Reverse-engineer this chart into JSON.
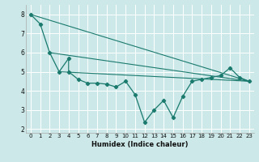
{
  "title": "",
  "xlabel": "Humidex (Indice chaleur)",
  "ylabel": "",
  "background_color": "#cce8e8",
  "grid_color": "#ffffff",
  "line_color": "#1a7a6e",
  "xlim": [
    -0.5,
    23.5
  ],
  "ylim": [
    1.8,
    8.5
  ],
  "yticks": [
    2,
    3,
    4,
    5,
    6,
    7,
    8
  ],
  "xticks": [
    0,
    1,
    2,
    3,
    4,
    5,
    6,
    7,
    8,
    9,
    10,
    11,
    12,
    13,
    14,
    15,
    16,
    17,
    18,
    19,
    20,
    21,
    22,
    23
  ],
  "series_main": {
    "x": [
      0,
      1,
      2,
      3,
      4,
      4,
      5,
      6,
      7,
      8,
      9,
      10,
      11,
      12,
      13,
      14,
      15,
      16,
      17,
      18,
      19,
      20,
      21,
      22,
      23
    ],
    "y": [
      8.0,
      7.5,
      6.0,
      5.0,
      5.7,
      5.0,
      4.6,
      4.4,
      4.4,
      4.35,
      4.2,
      4.5,
      3.8,
      2.35,
      3.0,
      3.5,
      2.6,
      3.7,
      4.5,
      4.6,
      4.7,
      4.8,
      5.2,
      4.7,
      4.5
    ],
    "marker": "D",
    "markersize": 2.2,
    "linewidth": 0.9
  },
  "trend_lines": [
    {
      "x": [
        0,
        23
      ],
      "y": [
        8.0,
        4.5
      ]
    },
    {
      "x": [
        2,
        23
      ],
      "y": [
        6.0,
        4.5
      ]
    },
    {
      "x": [
        3,
        23
      ],
      "y": [
        5.0,
        4.5
      ]
    }
  ],
  "trend_linewidth": 0.8,
  "xlabel_fontsize": 6,
  "tick_fontsize": 5,
  "ytick_fontsize": 5.5
}
